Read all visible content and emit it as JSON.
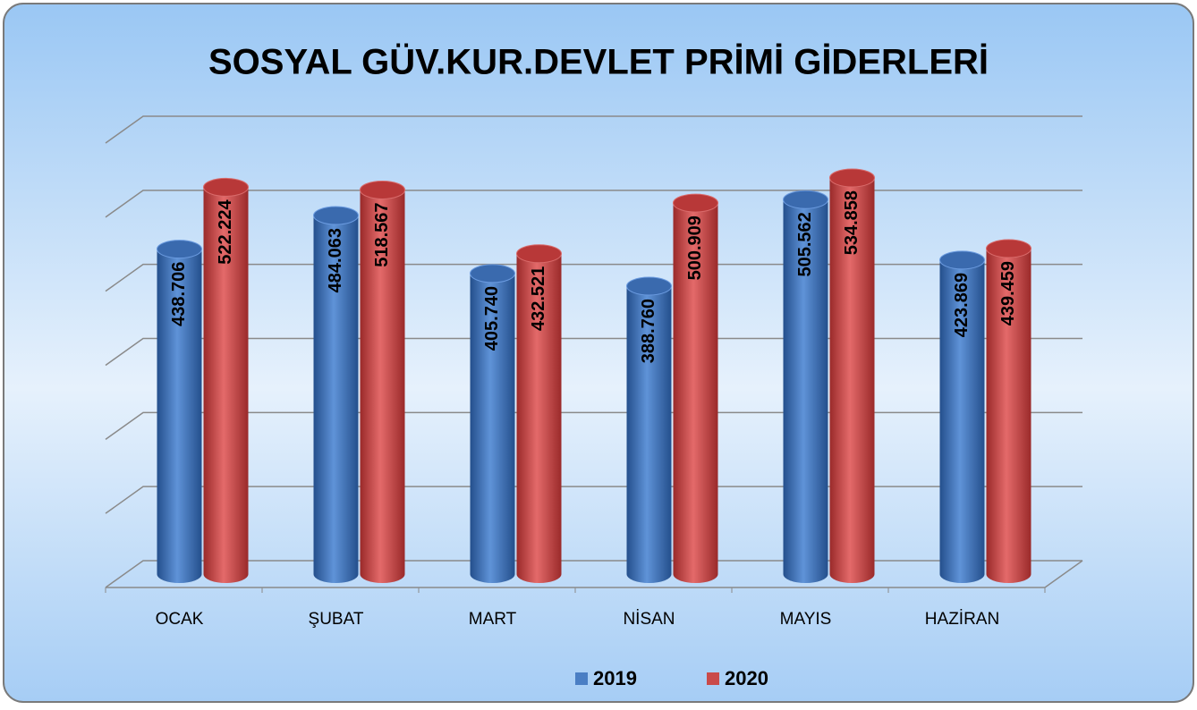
{
  "chart_data": {
    "type": "bar",
    "title": "SOSYAL GÜV.KUR.DEVLET PRİMİ GİDERLERİ",
    "categories": [
      "OCAK",
      "ŞUBAT",
      "MART",
      "NİSAN",
      "MAYIS",
      "HAZİRAN"
    ],
    "series": [
      {
        "name": "2019",
        "color": "#4a7ec4",
        "values": [
          438706,
          484063,
          405740,
          388760,
          505562,
          423869
        ],
        "value_labels": [
          "438.706",
          "484.063",
          "405.740",
          "388.760",
          "505.562",
          "423.869"
        ]
      },
      {
        "name": "2020",
        "color": "#c94a4a",
        "values": [
          522224,
          518567,
          432521,
          500909,
          534858,
          439459
        ],
        "value_labels": [
          "522.224",
          "518.567",
          "432.521",
          "500.909",
          "534.858",
          "439.459"
        ]
      }
    ],
    "ylim": [
      0,
      600000
    ],
    "yticks": [
      0,
      100000,
      200000,
      300000,
      400000,
      500000,
      600000
    ],
    "grid": true,
    "legend": "bottom"
  }
}
